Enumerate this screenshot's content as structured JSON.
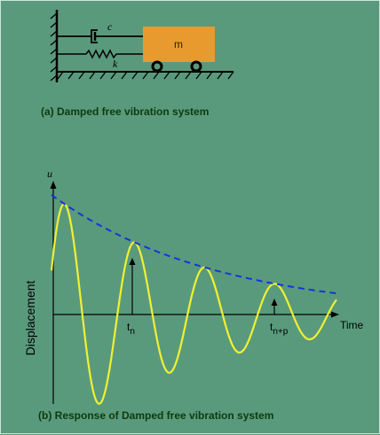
{
  "system": {
    "damper_label": "c",
    "spring_label": "k",
    "mass_label": "m",
    "caption": "(a) Damped free vibration system",
    "colors": {
      "mass": "#e89a2e",
      "wheel": "#000000"
    }
  },
  "response": {
    "caption": "(b) Response of Damped free vibration system",
    "y_label": "u",
    "y_axis_title": "Displacement",
    "x_axis_title": "Time",
    "tn_label": "t",
    "tn_sub": "n",
    "tnp_label": "t",
    "tnp_sub": "n+p",
    "colors": {
      "curve": "#f0f033",
      "envelope": "#1533dd"
    }
  }
}
